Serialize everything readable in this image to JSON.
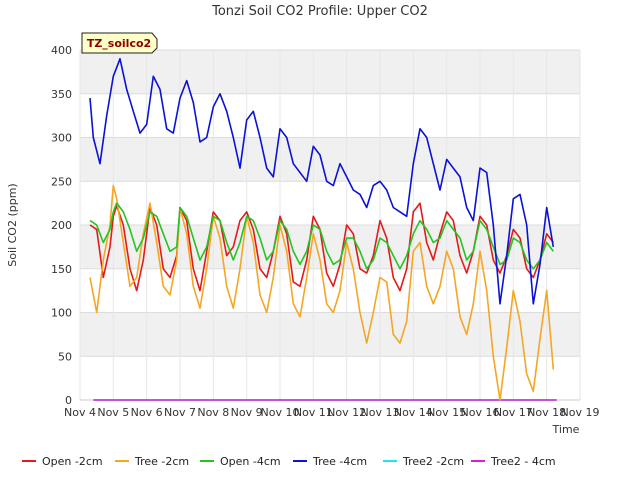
{
  "chart_data": {
    "type": "line",
    "title": "Tonzi Soil CO2 Profile: Upper CO2",
    "xlabel": "Time",
    "ylabel": "Soil CO2 (ppm)",
    "badge": "TZ_soilco2",
    "ylim": [
      0,
      400
    ],
    "xlim": [
      4,
      19
    ],
    "yticks": [
      0,
      50,
      100,
      150,
      200,
      250,
      300,
      350,
      400
    ],
    "xticks": [
      {
        "v": 4,
        "label": "Nov 4"
      },
      {
        "v": 5,
        "label": "Nov 5"
      },
      {
        "v": 6,
        "label": "Nov 6"
      },
      {
        "v": 7,
        "label": "Nov 7"
      },
      {
        "v": 8,
        "label": "Nov 8"
      },
      {
        "v": 9,
        "label": "Nov 9"
      },
      {
        "v": 10,
        "label": "Nov 10"
      },
      {
        "v": 11,
        "label": "Nov 11"
      },
      {
        "v": 12,
        "label": "Nov 12"
      },
      {
        "v": 13,
        "label": "Nov 13"
      },
      {
        "v": 14,
        "label": "Nov 14"
      },
      {
        "v": 15,
        "label": "Nov 15"
      },
      {
        "v": 16,
        "label": "Nov 16"
      },
      {
        "v": 17,
        "label": "Nov 17"
      },
      {
        "v": 18,
        "label": "Nov 18"
      },
      {
        "v": 19,
        "label": "Nov 19"
      }
    ],
    "grid": true,
    "legend_position": "bottom",
    "series": [
      {
        "name": "Open -2cm",
        "color": "#e31a1c",
        "x": [
          4.3,
          4.5,
          4.7,
          4.9,
          5.0,
          5.1,
          5.3,
          5.5,
          5.7,
          5.9,
          6.1,
          6.3,
          6.5,
          6.7,
          6.9,
          7.0,
          7.2,
          7.4,
          7.6,
          7.8,
          8.0,
          8.2,
          8.4,
          8.6,
          8.8,
          9.0,
          9.2,
          9.4,
          9.6,
          9.8,
          10.0,
          10.2,
          10.4,
          10.6,
          10.8,
          11.0,
          11.2,
          11.4,
          11.6,
          11.8,
          12.0,
          12.2,
          12.4,
          12.6,
          12.8,
          13.0,
          13.2,
          13.4,
          13.6,
          13.8,
          14.0,
          14.2,
          14.4,
          14.6,
          14.8,
          15.0,
          15.2,
          15.4,
          15.6,
          15.8,
          16.0,
          16.2,
          16.4,
          16.6,
          16.8,
          17.0,
          17.2,
          17.4,
          17.6,
          17.8,
          18.0,
          18.2
        ],
        "y": [
          200,
          195,
          140,
          175,
          210,
          222,
          200,
          150,
          125,
          160,
          220,
          200,
          150,
          140,
          165,
          220,
          205,
          150,
          125,
          170,
          215,
          205,
          165,
          175,
          205,
          215,
          195,
          150,
          140,
          170,
          210,
          190,
          135,
          130,
          160,
          210,
          195,
          145,
          130,
          155,
          200,
          190,
          150,
          145,
          165,
          205,
          185,
          140,
          125,
          150,
          215,
          225,
          180,
          160,
          190,
          215,
          205,
          165,
          145,
          170,
          210,
          200,
          160,
          145,
          165,
          195,
          185,
          150,
          140,
          160,
          190,
          180
        ]
      },
      {
        "name": "Tree -2cm",
        "color": "#f5a623",
        "x": [
          4.3,
          4.5,
          4.7,
          4.9,
          5.0,
          5.1,
          5.3,
          5.5,
          5.7,
          5.9,
          6.1,
          6.3,
          6.5,
          6.7,
          6.9,
          7.0,
          7.2,
          7.4,
          7.6,
          7.8,
          8.0,
          8.2,
          8.4,
          8.6,
          8.8,
          9.0,
          9.2,
          9.4,
          9.6,
          9.8,
          10.0,
          10.2,
          10.4,
          10.6,
          10.8,
          11.0,
          11.2,
          11.4,
          11.6,
          11.8,
          12.0,
          12.2,
          12.4,
          12.6,
          12.8,
          13.0,
          13.2,
          13.4,
          13.6,
          13.8,
          14.0,
          14.2,
          14.4,
          14.6,
          14.8,
          15.0,
          15.2,
          15.4,
          15.6,
          15.8,
          16.0,
          16.2,
          16.4,
          16.6,
          16.8,
          17.0,
          17.2,
          17.4,
          17.6,
          17.8,
          18.0,
          18.2
        ],
        "y": [
          140,
          100,
          160,
          200,
          245,
          230,
          180,
          130,
          140,
          190,
          225,
          180,
          130,
          120,
          160,
          220,
          190,
          130,
          105,
          150,
          210,
          185,
          130,
          105,
          150,
          210,
          180,
          120,
          100,
          140,
          200,
          170,
          110,
          95,
          140,
          190,
          160,
          110,
          100,
          125,
          180,
          150,
          100,
          65,
          100,
          140,
          135,
          75,
          65,
          90,
          170,
          180,
          130,
          110,
          130,
          170,
          150,
          95,
          75,
          110,
          170,
          125,
          50,
          0,
          60,
          125,
          90,
          30,
          10,
          70,
          125,
          35
        ]
      },
      {
        "name": "Open -4cm",
        "color": "#22c522",
        "x": [
          4.3,
          4.5,
          4.7,
          4.9,
          5.0,
          5.1,
          5.3,
          5.5,
          5.7,
          5.9,
          6.1,
          6.3,
          6.5,
          6.7,
          6.9,
          7.0,
          7.2,
          7.4,
          7.6,
          7.8,
          8.0,
          8.2,
          8.4,
          8.6,
          8.8,
          9.0,
          9.2,
          9.4,
          9.6,
          9.8,
          10.0,
          10.2,
          10.4,
          10.6,
          10.8,
          11.0,
          11.2,
          11.4,
          11.6,
          11.8,
          12.0,
          12.2,
          12.4,
          12.6,
          12.8,
          13.0,
          13.2,
          13.4,
          13.6,
          13.8,
          14.0,
          14.2,
          14.4,
          14.6,
          14.8,
          15.0,
          15.2,
          15.4,
          15.6,
          15.8,
          16.0,
          16.2,
          16.4,
          16.6,
          16.8,
          17.0,
          17.2,
          17.4,
          17.6,
          17.8,
          18.0,
          18.2
        ],
        "y": [
          205,
          200,
          180,
          195,
          215,
          225,
          215,
          195,
          170,
          185,
          215,
          210,
          190,
          170,
          175,
          220,
          210,
          185,
          160,
          175,
          210,
          205,
          180,
          160,
          180,
          210,
          205,
          185,
          160,
          170,
          205,
          195,
          170,
          155,
          170,
          200,
          195,
          170,
          155,
          160,
          185,
          185,
          170,
          150,
          160,
          185,
          180,
          165,
          150,
          165,
          190,
          205,
          195,
          180,
          185,
          205,
          195,
          185,
          160,
          170,
          205,
          195,
          175,
          155,
          160,
          185,
          180,
          160,
          150,
          160,
          180,
          170
        ]
      },
      {
        "name": "Tree -4cm",
        "color": "#0a12d6",
        "x": [
          4.3,
          4.4,
          4.6,
          4.8,
          5.0,
          5.2,
          5.4,
          5.6,
          5.8,
          6.0,
          6.2,
          6.4,
          6.6,
          6.8,
          7.0,
          7.2,
          7.4,
          7.6,
          7.8,
          8.0,
          8.2,
          8.4,
          8.6,
          8.8,
          9.0,
          9.2,
          9.4,
          9.6,
          9.8,
          10.0,
          10.2,
          10.4,
          10.6,
          10.8,
          11.0,
          11.2,
          11.4,
          11.6,
          11.8,
          12.0,
          12.2,
          12.4,
          12.6,
          12.8,
          13.0,
          13.2,
          13.4,
          13.6,
          13.8,
          14.0,
          14.2,
          14.4,
          14.6,
          14.8,
          15.0,
          15.2,
          15.4,
          15.6,
          15.8,
          16.0,
          16.2,
          16.4,
          16.6,
          16.8,
          17.0,
          17.2,
          17.4,
          17.6,
          17.8,
          18.0,
          18.2
        ],
        "y": [
          345,
          300,
          270,
          325,
          370,
          390,
          355,
          330,
          305,
          315,
          370,
          355,
          310,
          305,
          345,
          365,
          340,
          295,
          300,
          335,
          350,
          330,
          300,
          265,
          320,
          330,
          300,
          265,
          255,
          310,
          300,
          270,
          260,
          250,
          290,
          280,
          250,
          245,
          270,
          255,
          240,
          235,
          220,
          245,
          250,
          240,
          220,
          215,
          210,
          270,
          310,
          300,
          270,
          240,
          275,
          265,
          255,
          220,
          205,
          265,
          260,
          200,
          110,
          165,
          230,
          235,
          200,
          110,
          155,
          220,
          175
        ]
      }
    ]
  },
  "legend": [
    {
      "label": "Open -2cm",
      "color": "#e31a1c"
    },
    {
      "label": "Tree -2cm",
      "color": "#f5a623"
    },
    {
      "label": "Open -4cm",
      "color": "#22c522"
    },
    {
      "label": "Tree -4cm",
      "color": "#0a12d6"
    },
    {
      "label": "Tree2 -2cm",
      "color": "#1fe6ea"
    },
    {
      "label": "Tree2 - 4cm",
      "color": "#d61fd6"
    }
  ],
  "flat_series": [
    {
      "name": "Tree2 -2cm",
      "color": "#1fe6ea",
      "value": 0
    },
    {
      "name": "Tree2 - 4cm",
      "color": "#d61fd6",
      "value": 0
    }
  ]
}
